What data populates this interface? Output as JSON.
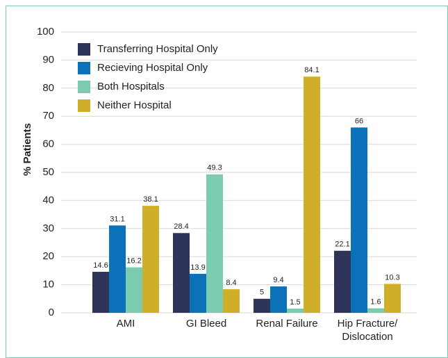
{
  "chart_data": {
    "type": "bar",
    "y_label": "% Patients",
    "categories": [
      "AMI",
      "GI Bleed",
      "Renal Failure",
      "Hip Fracture/\nDislocation"
    ],
    "series": [
      {
        "name": "Transferring Hospital Only",
        "color": "#2e3459",
        "values": [
          14.6,
          28.4,
          5,
          22.1
        ]
      },
      {
        "name": "Recieving Hospital Only",
        "color": "#0b72b9",
        "values": [
          31.1,
          13.9,
          9.4,
          66
        ]
      },
      {
        "name": "Both Hospitals",
        "color": "#7acbb0",
        "values": [
          16.2,
          49.3,
          1.5,
          1.6
        ]
      },
      {
        "name": "Neither Hospital",
        "color": "#cfae2a",
        "values": [
          38.1,
          8.4,
          84.1,
          10.3
        ]
      }
    ],
    "ylim": [
      0,
      100
    ],
    "yticks": [
      0,
      10,
      20,
      30,
      40,
      50,
      60,
      70,
      80,
      90,
      100
    ],
    "grid": true,
    "legend": "upper left"
  }
}
